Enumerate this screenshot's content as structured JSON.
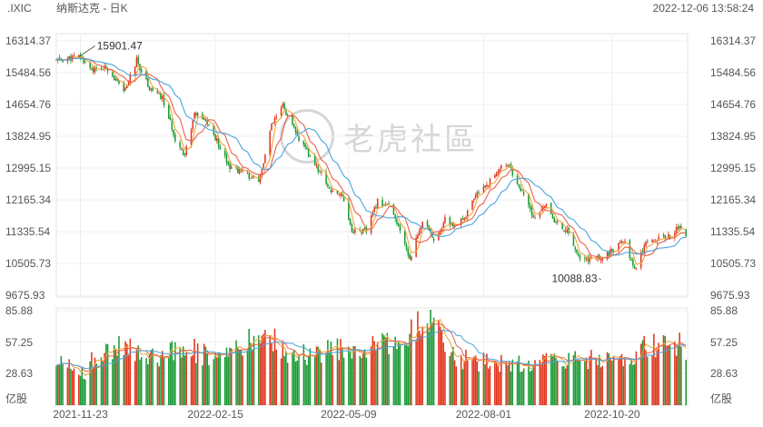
{
  "header": {
    "symbol": ".IXIC",
    "name": "纳斯达克 - 日K",
    "timestamp": "2022-12-06 13:58:24"
  },
  "watermark": {
    "text": "老虎社區",
    "icon": "tiger-logo-icon"
  },
  "colors": {
    "up": "#e0341c",
    "down": "#1a9a35",
    "ma5": "#f2a33a",
    "ma10": "#e8604c",
    "ma20": "#4aa3df"
  },
  "chart_data": [
    {
      "type": "candlestick",
      "title": "",
      "y_ticks": [
        "16314.37",
        "15484.56",
        "14654.76",
        "13824.95",
        "12995.15",
        "12165.34",
        "11335.54",
        "10505.73",
        "9675.93"
      ],
      "ylim": [
        9675.93,
        16314.37
      ],
      "x_ticks": [
        "2021-11-23",
        "2022-02-15",
        "2022-05-09",
        "2022-08-01",
        "2022-10-20"
      ],
      "annotations": [
        {
          "label": "15901.47",
          "date": "2021-11-22",
          "value": 15901.47
        },
        {
          "label": "10088.83",
          "date": "2022-10-13",
          "value": 10088.83
        }
      ],
      "close_trend": [
        [
          "2021-11-08",
          15800
        ],
        [
          "2021-11-22",
          15900
        ],
        [
          "2021-12-01",
          15560
        ],
        [
          "2021-12-10",
          15600
        ],
        [
          "2021-12-20",
          14950
        ],
        [
          "2021-12-28",
          15800
        ],
        [
          "2022-01-05",
          15100
        ],
        [
          "2022-01-13",
          14810
        ],
        [
          "2022-01-21",
          13770
        ],
        [
          "2022-01-27",
          13350
        ],
        [
          "2022-02-02",
          14420
        ],
        [
          "2022-02-10",
          14180
        ],
        [
          "2022-02-18",
          13540
        ],
        [
          "2022-02-24",
          13040
        ],
        [
          "2022-03-07",
          12830
        ],
        [
          "2022-03-14",
          12580
        ],
        [
          "2022-03-22",
          14100
        ],
        [
          "2022-03-29",
          14620
        ],
        [
          "2022-04-06",
          13890
        ],
        [
          "2022-04-14",
          13350
        ],
        [
          "2022-04-22",
          12840
        ],
        [
          "2022-04-29",
          12330
        ],
        [
          "2022-05-05",
          12320
        ],
        [
          "2022-05-11",
          11360
        ],
        [
          "2022-05-20",
          11350
        ],
        [
          "2022-05-27",
          12130
        ],
        [
          "2022-06-03",
          12010
        ],
        [
          "2022-06-10",
          11340
        ],
        [
          "2022-06-16",
          10640
        ],
        [
          "2022-06-24",
          11610
        ],
        [
          "2022-07-01",
          11120
        ],
        [
          "2022-07-08",
          11640
        ],
        [
          "2022-07-15",
          11450
        ],
        [
          "2022-07-22",
          11830
        ],
        [
          "2022-07-29",
          12390
        ],
        [
          "2022-08-05",
          12650
        ],
        [
          "2022-08-12",
          13050
        ],
        [
          "2022-08-16",
          13100
        ],
        [
          "2022-08-24",
          12430
        ],
        [
          "2022-09-02",
          11630
        ],
        [
          "2022-09-09",
          12110
        ],
        [
          "2022-09-13",
          11630
        ],
        [
          "2022-09-23",
          11310
        ],
        [
          "2022-09-30",
          10575
        ],
        [
          "2022-10-07",
          10650
        ],
        [
          "2022-10-13",
          10650
        ],
        [
          "2022-10-21",
          10860
        ],
        [
          "2022-10-28",
          11100
        ],
        [
          "2022-11-03",
          10340
        ],
        [
          "2022-11-10",
          11110
        ],
        [
          "2022-11-18",
          11150
        ],
        [
          "2022-11-25",
          11230
        ],
        [
          "2022-11-30",
          11470
        ],
        [
          "2022-12-05",
          11240
        ]
      ],
      "moving_averages": [
        "MA5",
        "MA10",
        "MA20"
      ]
    },
    {
      "type": "bar",
      "title": "",
      "unit_label": "亿股",
      "y_ticks": [
        "85.88",
        "57.25",
        "28.63"
      ],
      "ylim": [
        0,
        85.88
      ],
      "volume_trend": [
        [
          "2021-11-08",
          42
        ],
        [
          "2021-11-26",
          30
        ],
        [
          "2021-12-03",
          48
        ],
        [
          "2021-12-17",
          55
        ],
        [
          "2022-01-10",
          45
        ],
        [
          "2022-01-24",
          58
        ],
        [
          "2022-02-15",
          42
        ],
        [
          "2022-03-01",
          50
        ],
        [
          "2022-03-18",
          70
        ],
        [
          "2022-04-01",
          45
        ],
        [
          "2022-04-21",
          48
        ],
        [
          "2022-05-05",
          55
        ],
        [
          "2022-05-12",
          52
        ],
        [
          "2022-06-13",
          58
        ],
        [
          "2022-06-24",
          85
        ],
        [
          "2022-07-15",
          44
        ],
        [
          "2022-08-01",
          40
        ],
        [
          "2022-08-24",
          38
        ],
        [
          "2022-09-16",
          45
        ],
        [
          "2022-09-30",
          40
        ],
        [
          "2022-10-14",
          45
        ],
        [
          "2022-11-03",
          42
        ],
        [
          "2022-11-10",
          55
        ],
        [
          "2022-11-30",
          60
        ],
        [
          "2022-12-05",
          38
        ]
      ]
    }
  ]
}
